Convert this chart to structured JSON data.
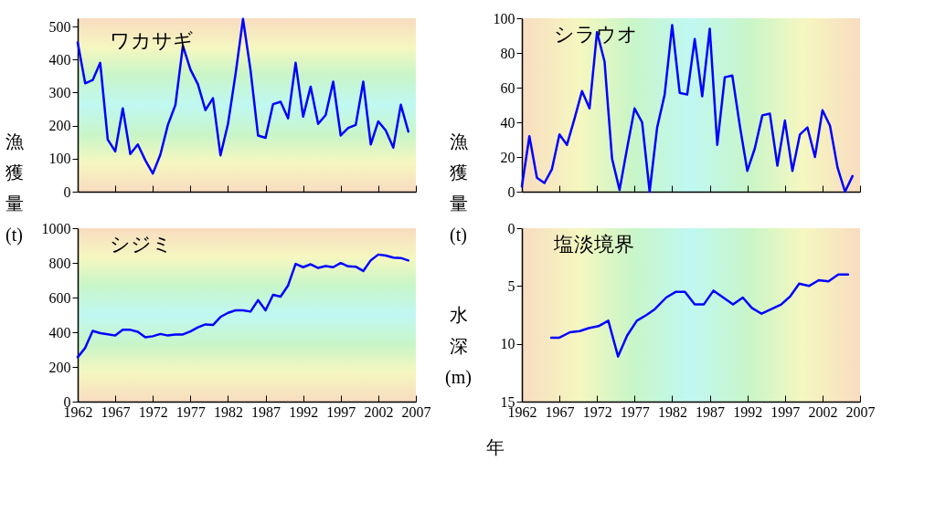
{
  "chart_data": [
    {
      "type": "line",
      "title": "ワカサギ",
      "ylabel": "漁獲量(t)",
      "tick_labels": "y",
      "xlim": [
        1962,
        2007
      ],
      "xticks": [
        1962,
        1967,
        1972,
        1977,
        1982,
        1987,
        1992,
        1997,
        2002,
        2007
      ],
      "ylim": [
        0,
        525
      ],
      "yticks": [
        0,
        100,
        200,
        300,
        400,
        500
      ],
      "x": [
        1962,
        1963,
        1964,
        1965,
        1966,
        1967,
        1968,
        1969,
        1970,
        1971,
        1972,
        1973,
        1974,
        1975,
        1976,
        1977,
        1978,
        1979,
        1980,
        1981,
        1982,
        1983,
        1984,
        1985,
        1986,
        1987,
        1988,
        1989,
        1990,
        1991,
        1992,
        1993,
        1994,
        1995,
        1996,
        1997,
        1998,
        1999,
        2000,
        2001,
        2002,
        2003,
        2004,
        2005,
        2006
      ],
      "series": [
        {
          "color": "#0000ff",
          "values": [
            452,
            328,
            338,
            390,
            158,
            122,
            252,
            114,
            143,
            95,
            55,
            112,
            202,
            262,
            442,
            370,
            325,
            247,
            283,
            110,
            205,
            355,
            523,
            368,
            170,
            163,
            265,
            272,
            222,
            390,
            227,
            318,
            205,
            232,
            333,
            170,
            193,
            202,
            333,
            143,
            213,
            185,
            133,
            263,
            182
          ]
        }
      ]
    },
    {
      "type": "line",
      "title": "シラウオ",
      "ylabel": "漁獲量(t)",
      "tick_labels": "y",
      "xlim": [
        1962,
        2007
      ],
      "xticks": [
        1962,
        1967,
        1972,
        1977,
        1982,
        1987,
        1992,
        1997,
        2002,
        2007
      ],
      "ylim": [
        0,
        100
      ],
      "yticks": [
        0,
        20,
        40,
        60,
        80,
        100
      ],
      "x": [
        1962,
        1963,
        1964,
        1965,
        1966,
        1967,
        1968,
        1969,
        1970,
        1971,
        1972,
        1973,
        1974,
        1975,
        1976,
        1977,
        1978,
        1979,
        1980,
        1981,
        1982,
        1983,
        1984,
        1985,
        1986,
        1987,
        1988,
        1989,
        1990,
        1991,
        1992,
        1993,
        1994,
        1995,
        1996,
        1997,
        1998,
        1999,
        2000,
        2001,
        2002,
        2003,
        2004,
        2005,
        2006
      ],
      "series": [
        {
          "color": "#0000ff",
          "values": [
            3,
            32,
            8,
            5,
            13,
            33,
            27,
            42,
            58,
            48,
            92,
            75,
            19,
            1,
            25,
            48,
            40,
            0,
            37,
            56,
            96,
            57,
            56,
            88,
            55,
            94,
            27,
            66,
            67,
            38,
            12,
            25,
            44,
            45,
            15,
            41,
            12,
            33,
            37,
            20,
            47,
            38,
            14,
            0,
            9
          ]
        }
      ]
    },
    {
      "type": "line",
      "title": "シジミ",
      "xlim": [
        1962,
        2007
      ],
      "xticks": [
        1962,
        1967,
        1972,
        1977,
        1982,
        1987,
        1992,
        1997,
        2002,
        2007
      ],
      "ylim": [
        0,
        1000
      ],
      "yticks": [
        0,
        200,
        400,
        600,
        800,
        1000
      ],
      "x": [
        1962,
        1963,
        1964,
        1965,
        1966,
        1967,
        1968,
        1969,
        1970,
        1971,
        1972,
        1973,
        1974,
        1975,
        1976,
        1977,
        1978,
        1979,
        1980,
        1981,
        1982,
        1983,
        1984,
        1985,
        1986,
        1987,
        1988,
        1989,
        1990,
        1991,
        1992,
        1993,
        1994,
        1995,
        1996,
        1997,
        1998,
        1999,
        2000,
        2001,
        2002,
        2003,
        2004,
        2005,
        2006
      ],
      "series": [
        {
          "color": "#0000ff",
          "values": [
            256,
            310,
            408,
            395,
            388,
            381,
            414,
            414,
            403,
            371,
            377,
            390,
            381,
            387,
            387,
            405,
            428,
            445,
            442,
            488,
            512,
            526,
            526,
            519,
            585,
            526,
            616,
            605,
            670,
            794,
            775,
            792,
            771,
            782,
            775,
            799,
            780,
            778,
            753,
            815,
            848,
            842,
            830,
            828,
            814
          ]
        }
      ]
    },
    {
      "type": "line",
      "title": "塩淡境界",
      "ylabel": "水深(m)",
      "xlabel": "年",
      "xlim": [
        1962,
        2007
      ],
      "xticks": [
        1962,
        1967,
        1972,
        1977,
        1982,
        1987,
        1992,
        1997,
        2002,
        2007
      ],
      "ylim": [
        15,
        0
      ],
      "yticks": [
        0,
        5,
        10,
        15
      ],
      "x": [
        1965.9,
        1967.0,
        1968.4,
        1969.7,
        1970.9,
        1972.2,
        1973.5,
        1974.8,
        1976.0,
        1977.3,
        1978.6,
        1979.7,
        1981.2,
        1982.5,
        1983.7,
        1985.0,
        1986.2,
        1987.5,
        1988.8,
        1990.1,
        1991.4,
        1992.6,
        1993.9,
        1995.2,
        1996.5,
        1997.7,
        1998.9,
        2000.2,
        2001.5,
        2002.8,
        2004.1,
        2005.4
      ],
      "series": [
        {
          "color": "#0000ff",
          "values": [
            9.47,
            9.47,
            9.0,
            8.9,
            8.64,
            8.47,
            8.0,
            11.1,
            9.3,
            8.0,
            7.5,
            7.0,
            6.0,
            5.5,
            5.5,
            6.6,
            6.6,
            5.4,
            6.0,
            6.6,
            6.0,
            6.9,
            7.4,
            7.0,
            6.6,
            5.9,
            4.8,
            5.0,
            4.5,
            4.6,
            4.0,
            4.0
          ]
        }
      ]
    }
  ]
}
